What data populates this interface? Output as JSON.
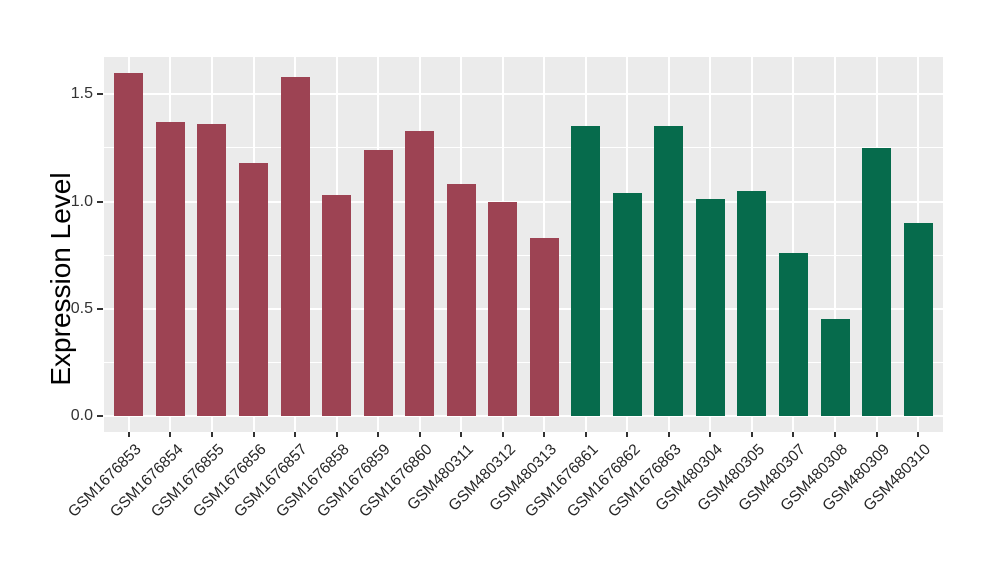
{
  "chart_data": {
    "type": "bar",
    "title": "",
    "xlabel": "",
    "ylabel": "Expression Level",
    "categories": [
      "GSM1676853",
      "GSM1676854",
      "GSM1676855",
      "GSM1676856",
      "GSM1676857",
      "GSM1676858",
      "GSM1676859",
      "GSM1676860",
      "GSM480311",
      "GSM480312",
      "GSM480313",
      "GSM1676861",
      "GSM1676862",
      "GSM1676863",
      "GSM480304",
      "GSM480305",
      "GSM480307",
      "GSM480308",
      "GSM480309",
      "GSM480310"
    ],
    "values": [
      1.6,
      1.37,
      1.36,
      1.18,
      1.58,
      1.03,
      1.24,
      1.33,
      1.08,
      1.0,
      0.83,
      1.35,
      1.04,
      1.35,
      1.01,
      1.05,
      0.76,
      0.45,
      1.25,
      0.9
    ],
    "groups": [
      "maroon",
      "maroon",
      "maroon",
      "maroon",
      "maroon",
      "maroon",
      "maroon",
      "maroon",
      "maroon",
      "maroon",
      "maroon",
      "green",
      "green",
      "green",
      "green",
      "green",
      "green",
      "green",
      "green",
      "green"
    ],
    "group_colors": {
      "maroon": "#9D4353",
      "green": "#066B4C"
    },
    "y_ticks": [
      0.0,
      0.5,
      1.0,
      1.5
    ],
    "y_tick_labels": [
      "0.0",
      "0.5",
      "1.0",
      "1.5"
    ],
    "y_minor_gridlines": [
      0.25,
      0.75,
      1.25
    ],
    "ylim": [
      -0.07,
      1.68
    ],
    "grid": true,
    "legend": "none",
    "style_colors": {
      "figure_background": "#FFFFFF",
      "panel_background": "#EBEBEB",
      "gridline": "#FFFFFF",
      "tick_mark": "#333333",
      "tick_text": "#303030",
      "axis_title_text": "#000000"
    }
  }
}
